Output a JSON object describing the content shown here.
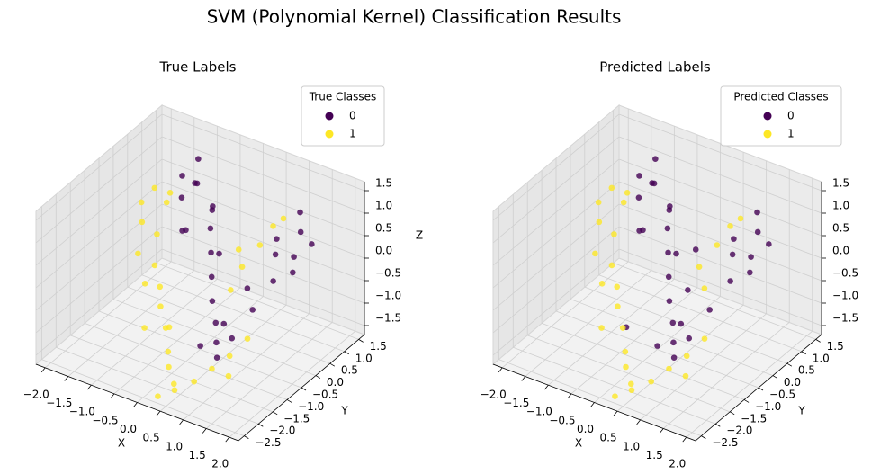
{
  "title": "SVM (Polynomial Kernel) Classification Results",
  "chart_data": [
    {
      "type": "scatter3d",
      "title": "True Labels",
      "xlabel": "X",
      "ylabel": "Y",
      "zlabel": "Z",
      "legend_title": "True Classes",
      "legend": "upper right",
      "xlim": [
        -2.2,
        2.2
      ],
      "ylim": [
        -2.7,
        1.7
      ],
      "zlim": [
        -1.7,
        1.7
      ],
      "xticks": [
        {
          "value": -2,
          "label": "−2.0"
        },
        {
          "value": -1.5,
          "label": "−1.5"
        },
        {
          "value": -1,
          "label": "−1.0"
        },
        {
          "value": -0.5,
          "label": "−0.5"
        },
        {
          "value": 0,
          "label": "0.0"
        },
        {
          "value": 0.5,
          "label": "0.5"
        },
        {
          "value": 1,
          "label": "1.0"
        },
        {
          "value": 1.5,
          "label": "1.5"
        },
        {
          "value": 2,
          "label": "2.0"
        }
      ],
      "yticks": [
        {
          "value": -2.5,
          "label": "−2.5"
        },
        {
          "value": -2,
          "label": "−2.0"
        },
        {
          "value": -1.5,
          "label": "−1.5"
        },
        {
          "value": -1,
          "label": "−1.0"
        },
        {
          "value": -0.5,
          "label": "−0.5"
        },
        {
          "value": 0,
          "label": "0.0"
        },
        {
          "value": 0.5,
          "label": "0.5"
        },
        {
          "value": 1,
          "label": "1.0"
        },
        {
          "value": 1.5,
          "label": "1.5"
        }
      ],
      "zticks": [
        {
          "value": -1.5,
          "label": "−1.5"
        },
        {
          "value": -1,
          "label": "−1.0"
        },
        {
          "value": -0.5,
          "label": "−0.5"
        },
        {
          "value": 0,
          "label": "0.0"
        },
        {
          "value": 0.5,
          "label": "0.5"
        },
        {
          "value": 1,
          "label": "1.0"
        },
        {
          "value": 1.5,
          "label": "1.5"
        }
      ],
      "series": [
        {
          "name": "0",
          "color": "#440154",
          "x": [
            -1.2,
            -1.0,
            -0.8,
            -0.6,
            -0.9,
            -0.4,
            -0.2,
            0.0,
            0.2,
            0.4,
            0.6,
            0.8,
            1.0,
            1.2,
            1.4,
            1.6,
            1.5,
            1.3,
            1.1,
            1.7,
            -0.5,
            -0.3,
            0.9,
            1.8,
            0.5,
            -1.1,
            0.1,
            1.2,
            -0.7,
            0.7
          ],
          "y": [
            0.8,
            1.0,
            0.6,
            0.9,
            0.3,
            0.5,
            0.2,
            -0.1,
            -0.4,
            -0.6,
            -0.9,
            -1.2,
            -1.0,
            -0.6,
            -0.2,
            0.2,
            0.6,
            0.9,
            0.4,
            0.0,
            -0.2,
            0.4,
            -0.3,
            0.5,
            -1.3,
            1.2,
            0.0,
            0.2,
            0.0,
            -0.8
          ],
          "z": [
            1.0,
            0.8,
            1.1,
            0.5,
            0.9,
            0.3,
            0.0,
            -0.3,
            -0.6,
            -0.9,
            -1.1,
            -1.2,
            -0.8,
            -0.3,
            0.2,
            0.6,
            0.9,
            1.1,
            0.7,
            0.4,
            0.6,
            0.8,
            -0.1,
            0.8,
            -1.0,
            1.2,
            0.2,
            0.5,
            0.4,
            -0.7
          ]
        },
        {
          "name": "1",
          "color": "#fde725",
          "x": [
            -1.9,
            -1.7,
            -1.8,
            -1.5,
            -1.6,
            -1.3,
            -1.0,
            -0.8,
            -0.5,
            -0.2,
            0.0,
            0.3,
            0.5,
            0.8,
            1.0,
            1.2,
            0.6,
            0.4,
            0.8,
            1.0,
            -1.4,
            -1.2,
            -0.9,
            0.2,
            1.4,
            0.9,
            -1.6,
            -0.3,
            0.6,
            1.3
          ],
          "y": [
            0.5,
            0.2,
            0.8,
            0.4,
            -0.1,
            0.0,
            -0.3,
            -0.6,
            -0.9,
            -1.3,
            -1.6,
            -1.9,
            -2.2,
            -2.0,
            -1.7,
            -1.4,
            -0.4,
            0.2,
            0.3,
            0.8,
            0.7,
            -0.5,
            -1.0,
            -2.3,
            -1.1,
            0.6,
            0.9,
            -1.1,
            0.0,
            -1.6
          ],
          "z": [
            0.3,
            0.1,
            0.5,
            -0.2,
            -0.4,
            -0.6,
            -0.8,
            -1.0,
            -1.2,
            -1.4,
            -1.5,
            -1.6,
            -1.5,
            -1.3,
            -1.1,
            -0.9,
            -0.2,
            0.3,
            0.5,
            0.9,
            0.6,
            -0.7,
            -1.3,
            -1.7,
            -0.6,
            0.8,
            0.2,
            -1.0,
            0.1,
            -1.2
          ]
        }
      ]
    },
    {
      "type": "scatter3d",
      "title": "Predicted Labels",
      "xlabel": "X",
      "ylabel": "Y",
      "legend_title": "Predicted Classes",
      "legend": "upper right",
      "xlim": [
        -2.2,
        2.2
      ],
      "ylim": [
        -2.7,
        1.7
      ],
      "zlim": [
        -1.7,
        1.7
      ],
      "xticks": [
        {
          "value": -2,
          "label": "−2.0"
        },
        {
          "value": -1.5,
          "label": "−1.5"
        },
        {
          "value": -1,
          "label": "−1.0"
        },
        {
          "value": -0.5,
          "label": "−0.5"
        },
        {
          "value": 0,
          "label": "0.0"
        },
        {
          "value": 0.5,
          "label": "0.5"
        },
        {
          "value": 1,
          "label": "1.0"
        },
        {
          "value": 1.5,
          "label": "1.5"
        },
        {
          "value": 2,
          "label": "2.0"
        }
      ],
      "yticks": [
        {
          "value": -2.5,
          "label": "−2.5"
        },
        {
          "value": -2,
          "label": "−2.0"
        },
        {
          "value": -1.5,
          "label": "−1.5"
        },
        {
          "value": -1,
          "label": "−1.0"
        },
        {
          "value": -0.5,
          "label": "−0.5"
        },
        {
          "value": 0,
          "label": "0.0"
        },
        {
          "value": 0.5,
          "label": "0.5"
        },
        {
          "value": 1,
          "label": "1.0"
        },
        {
          "value": 1.5,
          "label": "1.5"
        }
      ],
      "zticks": [
        {
          "value": -1.5,
          "label": "−1.5"
        },
        {
          "value": -1,
          "label": "−1.0"
        },
        {
          "value": -0.5,
          "label": "−0.5"
        },
        {
          "value": 0,
          "label": "0.0"
        },
        {
          "value": 0.5,
          "label": "0.5"
        },
        {
          "value": 1,
          "label": "1.0"
        },
        {
          "value": 1.5,
          "label": "1.5"
        }
      ],
      "series": [
        {
          "name": "0",
          "color": "#440154",
          "x": [
            -1.2,
            -1.0,
            -0.8,
            -0.6,
            -0.9,
            -0.4,
            -0.2,
            0.0,
            0.2,
            0.4,
            0.6,
            0.8,
            1.0,
            1.2,
            1.4,
            1.6,
            1.5,
            1.3,
            1.1,
            1.7,
            -0.5,
            -0.3,
            1.8,
            0.5,
            -1.1,
            0.1,
            1.2,
            -0.7,
            0.7,
            0.6,
            0.4,
            -0.3
          ],
          "y": [
            0.8,
            1.0,
            0.6,
            0.9,
            0.3,
            0.5,
            0.2,
            -0.1,
            -0.4,
            -0.6,
            -0.9,
            -1.2,
            -1.0,
            -0.6,
            -0.2,
            0.2,
            0.6,
            0.9,
            0.4,
            0.0,
            -0.2,
            0.4,
            0.5,
            -1.3,
            1.2,
            0.0,
            0.2,
            0.0,
            -0.8,
            -0.4,
            0.2,
            -1.1
          ],
          "z": [
            1.0,
            0.8,
            1.1,
            0.5,
            0.9,
            0.3,
            0.0,
            -0.3,
            -0.6,
            -0.9,
            -1.1,
            -1.2,
            -0.8,
            -0.3,
            0.2,
            0.6,
            0.9,
            1.1,
            0.7,
            0.4,
            0.6,
            0.8,
            0.8,
            -1.0,
            1.2,
            0.2,
            0.5,
            0.4,
            -0.7,
            -0.2,
            0.3,
            -1.0
          ]
        },
        {
          "name": "1",
          "color": "#fde725",
          "x": [
            -1.9,
            -1.7,
            -1.8,
            -1.5,
            -1.6,
            -1.3,
            -1.0,
            -0.8,
            -0.5,
            -0.2,
            0.0,
            0.3,
            0.5,
            0.8,
            1.0,
            1.2,
            0.8,
            1.0,
            -1.4,
            -1.2,
            -0.9,
            0.2,
            1.4,
            0.9,
            -1.6,
            0.6,
            1.3,
            0.9
          ],
          "y": [
            0.5,
            0.2,
            0.8,
            0.4,
            -0.1,
            0.0,
            -0.3,
            -0.6,
            -0.9,
            -1.3,
            -1.6,
            -1.9,
            -2.2,
            -2.0,
            -1.7,
            -1.4,
            0.3,
            0.8,
            0.7,
            -0.5,
            -1.0,
            -2.3,
            -1.1,
            0.6,
            0.9,
            0.0,
            -1.6,
            -0.3
          ],
          "z": [
            0.3,
            0.1,
            0.5,
            -0.2,
            -0.4,
            -0.6,
            -0.8,
            -1.0,
            -1.2,
            -1.4,
            -1.5,
            -1.6,
            -1.5,
            -1.3,
            -1.1,
            -0.9,
            0.5,
            0.9,
            0.6,
            -0.7,
            -1.3,
            -1.7,
            -0.6,
            0.8,
            0.2,
            0.1,
            -1.2,
            -0.1
          ]
        }
      ]
    }
  ]
}
